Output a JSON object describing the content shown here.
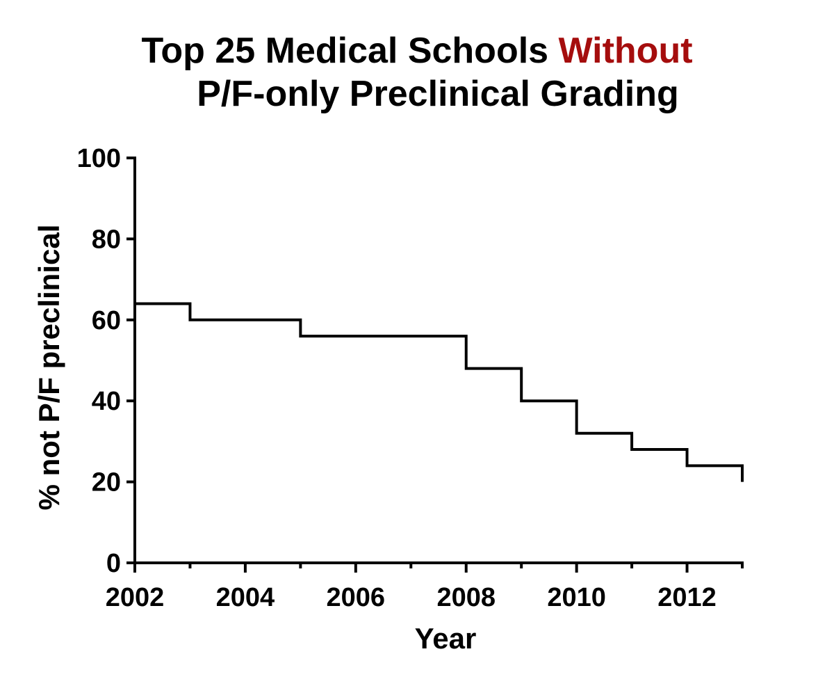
{
  "chart_data": {
    "type": "line",
    "style": "step",
    "title_parts": [
      {
        "text": "Top 25 Medical Schools ",
        "color": "#000000"
      },
      {
        "text": "Without",
        "color": "#a50d0d"
      },
      {
        "text": "P/F-only Preclinical Grading",
        "color": "#000000"
      }
    ],
    "xlabel": "Year",
    "ylabel": "% not P/F preclinical",
    "xlim": [
      2002,
      2013
    ],
    "ylim": [
      0,
      100
    ],
    "x_ticks": [
      2002,
      2004,
      2006,
      2008,
      2010,
      2012
    ],
    "y_ticks": [
      0,
      20,
      40,
      60,
      80,
      100
    ],
    "grid": false,
    "series": [
      {
        "name": "% not P/F preclinical",
        "color": "#000000",
        "x": [
          2002,
          2003,
          2005,
          2008,
          2009,
          2010,
          2011,
          2012,
          2013
        ],
        "values": [
          64,
          60,
          56,
          48,
          40,
          32,
          28,
          24,
          20
        ]
      }
    ]
  }
}
